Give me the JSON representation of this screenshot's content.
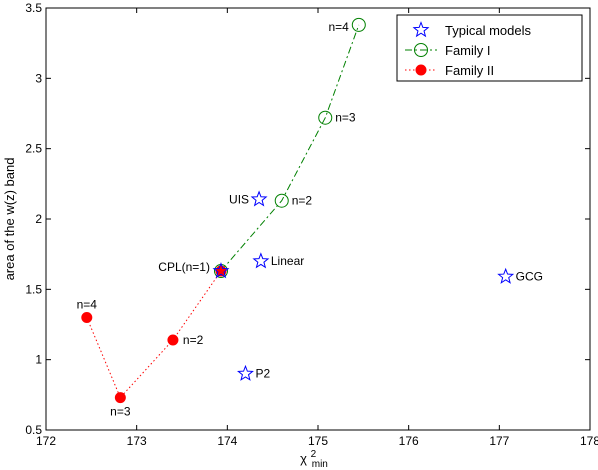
{
  "chart_data": {
    "type": "scatter",
    "title": "",
    "xlabel": "χ",
    "xlabel_superscript": "2",
    "xlabel_subscript": "min",
    "ylabel": "area of the w(z) band",
    "xlim": [
      172,
      178
    ],
    "ylim": [
      0.5,
      3.5
    ],
    "xticks": [
      "172",
      "173",
      "174",
      "175",
      "176",
      "177",
      "178"
    ],
    "yticks": [
      "0.5",
      "1",
      "1.5",
      "2",
      "2.5",
      "3",
      "3.5"
    ],
    "grid": false,
    "legend_position": "top-right",
    "series": [
      {
        "name": "Typical models",
        "marker": "star",
        "line": "none",
        "color": "#0000ff",
        "points": [
          {
            "x": 174.35,
            "y": 2.14,
            "label": "UIS",
            "label_pos": "left"
          },
          {
            "x": 174.37,
            "y": 1.7,
            "label": "Linear",
            "label_pos": "right"
          },
          {
            "x": 174.2,
            "y": 0.9,
            "label": "P2",
            "label_pos": "right"
          },
          {
            "x": 177.07,
            "y": 1.59,
            "label": "GCG",
            "label_pos": "right"
          },
          {
            "x": 173.93,
            "y": 1.63,
            "label": "",
            "label_pos": "none"
          }
        ]
      },
      {
        "name": "Family I",
        "marker": "circle",
        "line": "dashdot",
        "color": "#008000",
        "points": [
          {
            "x": 173.93,
            "y": 1.63,
            "label": "",
            "label_pos": "none"
          },
          {
            "x": 174.6,
            "y": 2.13,
            "label": "n=2",
            "label_pos": "right"
          },
          {
            "x": 175.08,
            "y": 2.72,
            "label": "n=3",
            "label_pos": "right"
          },
          {
            "x": 175.45,
            "y": 3.38,
            "label": "n=4",
            "label_pos": "left"
          }
        ]
      },
      {
        "name": "Family II",
        "marker": "filled-circle",
        "line": "dotted",
        "color": "#ff0000",
        "points": [
          {
            "x": 172.45,
            "y": 1.3,
            "label": "n=4",
            "label_pos": "above"
          },
          {
            "x": 172.82,
            "y": 0.73,
            "label": "n=3",
            "label_pos": "below"
          },
          {
            "x": 173.4,
            "y": 1.14,
            "label": "n=2",
            "label_pos": "right"
          },
          {
            "x": 173.93,
            "y": 1.63,
            "label": "CPL(n=1)",
            "label_pos": "left"
          }
        ]
      }
    ]
  }
}
